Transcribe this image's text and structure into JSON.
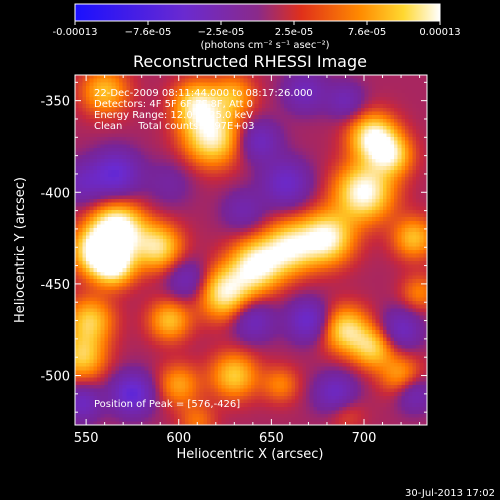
{
  "colorbar": {
    "tick_labels": [
      "-0.00013",
      "−7.6e-05",
      "−2.5e-05",
      "2.5e-05",
      "7.6e-05",
      "0.00013"
    ],
    "unit_label": "(photons cm⁻² s⁻¹ asec⁻²)",
    "range": [
      -0.00013,
      0.00013
    ],
    "colors": [
      "#1a10ff",
      "#6a2ad0",
      "#8a2a8a",
      "#e0301a",
      "#ff8a00",
      "#ffd830",
      "#ffffff"
    ]
  },
  "annotation_lines": [
    "22-Dec-2009 08:11:44.000 to 08:17:26.000",
    "Detectors: 4F 5F 6F 7F 8F, Att 0",
    "Energy Range: 12.0 to 25.0 keV",
    "Clean     Total counts: 9.97E+03"
  ],
  "peak_label": "Position of Peak = [576,-426]",
  "footer_date": "30-Jul-2013 17:02",
  "chart_data": {
    "type": "heatmap",
    "title": "Reconstructed RHESSI Image",
    "xlabel": "Heliocentric X (arcsec)",
    "ylabel": "Heliocentric Y (arcsec)",
    "xlim": [
      544,
      734
    ],
    "ylim": [
      -527,
      -336
    ],
    "xticks": [
      550,
      600,
      650,
      700
    ],
    "yticks": [
      -350,
      -400,
      -450,
      -500
    ],
    "peak": [
      576,
      -426
    ],
    "grid": false,
    "blobs": [
      {
        "x": 567,
        "y": -420,
        "v": 1.0,
        "s": 10
      },
      {
        "x": 555,
        "y": -432,
        "v": 0.8,
        "s": 9
      },
      {
        "x": 589,
        "y": -430,
        "v": 0.7,
        "s": 9
      },
      {
        "x": 565,
        "y": -440,
        "v": 0.8,
        "s": 8
      },
      {
        "x": 552,
        "y": -470,
        "v": 0.6,
        "s": 9
      },
      {
        "x": 548,
        "y": -490,
        "v": 0.6,
        "s": 9
      },
      {
        "x": 560,
        "y": -345,
        "v": 0.55,
        "s": 9
      },
      {
        "x": 618,
        "y": -370,
        "v": 0.8,
        "s": 11
      },
      {
        "x": 610,
        "y": -352,
        "v": 0.7,
        "s": 9
      },
      {
        "x": 630,
        "y": -347,
        "v": 0.45,
        "s": 8
      },
      {
        "x": 595,
        "y": -470,
        "v": 0.55,
        "s": 8
      },
      {
        "x": 625,
        "y": -455,
        "v": 0.8,
        "s": 10
      },
      {
        "x": 642,
        "y": -440,
        "v": 0.85,
        "s": 10
      },
      {
        "x": 660,
        "y": -430,
        "v": 0.75,
        "s": 10
      },
      {
        "x": 680,
        "y": -425,
        "v": 0.85,
        "s": 10
      },
      {
        "x": 700,
        "y": -400,
        "v": 0.9,
        "s": 11
      },
      {
        "x": 705,
        "y": -370,
        "v": 0.85,
        "s": 9
      },
      {
        "x": 715,
        "y": -380,
        "v": 0.6,
        "s": 8
      },
      {
        "x": 727,
        "y": -425,
        "v": 0.55,
        "s": 8
      },
      {
        "x": 690,
        "y": -475,
        "v": 0.7,
        "s": 9
      },
      {
        "x": 705,
        "y": -485,
        "v": 0.6,
        "s": 8
      },
      {
        "x": 730,
        "y": -455,
        "v": 0.35,
        "s": 7
      },
      {
        "x": 630,
        "y": -500,
        "v": 0.6,
        "s": 9
      },
      {
        "x": 655,
        "y": -505,
        "v": 0.35,
        "s": 7
      },
      {
        "x": 600,
        "y": -505,
        "v": 0.45,
        "s": 8
      },
      {
        "x": 610,
        "y": -525,
        "v": 0.3,
        "s": 7
      },
      {
        "x": 690,
        "y": -520,
        "v": 0.25,
        "s": 7
      },
      {
        "x": 720,
        "y": -500,
        "v": 0.45,
        "s": 8
      },
      {
        "x": 566,
        "y": -390,
        "v": -0.6,
        "s": 9
      },
      {
        "x": 575,
        "y": -510,
        "v": -0.65,
        "s": 8
      },
      {
        "x": 548,
        "y": -515,
        "v": -0.45,
        "s": 7
      },
      {
        "x": 658,
        "y": -395,
        "v": -0.5,
        "s": 9
      },
      {
        "x": 643,
        "y": -372,
        "v": -0.45,
        "s": 8
      },
      {
        "x": 668,
        "y": -345,
        "v": -0.4,
        "s": 8
      },
      {
        "x": 690,
        "y": -350,
        "v": -0.35,
        "s": 7
      },
      {
        "x": 670,
        "y": -470,
        "v": -0.55,
        "s": 8
      },
      {
        "x": 685,
        "y": -510,
        "v": -0.5,
        "s": 8
      },
      {
        "x": 640,
        "y": -470,
        "v": -0.45,
        "s": 8
      },
      {
        "x": 720,
        "y": -475,
        "v": -0.45,
        "s": 8
      },
      {
        "x": 727,
        "y": -510,
        "v": -0.4,
        "s": 7
      },
      {
        "x": 605,
        "y": -448,
        "v": -0.4,
        "s": 8
      },
      {
        "x": 635,
        "y": -410,
        "v": -0.3,
        "s": 8
      },
      {
        "x": 595,
        "y": -395,
        "v": -0.2,
        "s": 9
      },
      {
        "x": 548,
        "y": -395,
        "v": -0.35,
        "s": 8
      }
    ]
  }
}
